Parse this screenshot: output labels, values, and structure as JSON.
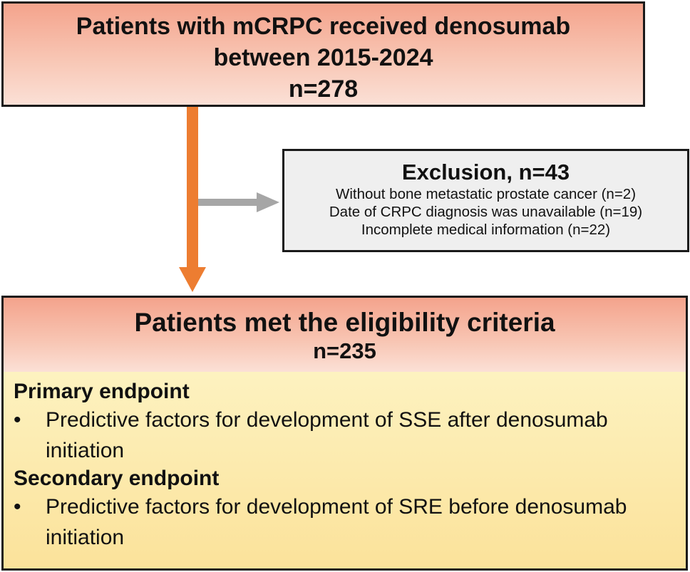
{
  "top": {
    "line1": "Patients with mCRPC received denosumab",
    "line2": "between 2015-2024",
    "n": "n=278"
  },
  "exclusion": {
    "title": "Exclusion, n=43",
    "items": [
      "Without bone metastatic prostate cancer (n=2)",
      "Date of CRPC diagnosis was unavailable (n=19)",
      "Incomplete medical information (n=22)"
    ]
  },
  "eligible": {
    "title": "Patients met the eligibility criteria",
    "n": "n=235",
    "primary": {
      "heading": "Primary endpoint",
      "bullet": "•",
      "item": "Predictive factors for development of SSE after denosumab initiation"
    },
    "secondary": {
      "heading": "Secondary endpoint",
      "bullet": "•",
      "item": "Predictive factors for development of SRE before denosumab initiation"
    }
  },
  "colors": {
    "main_arrow": "#ed7d31",
    "side_arrow": "#a6a6a6",
    "header_fill": "#f8c6b4",
    "body_fill": "#fbe29a",
    "exclusion_fill": "#efefef"
  }
}
